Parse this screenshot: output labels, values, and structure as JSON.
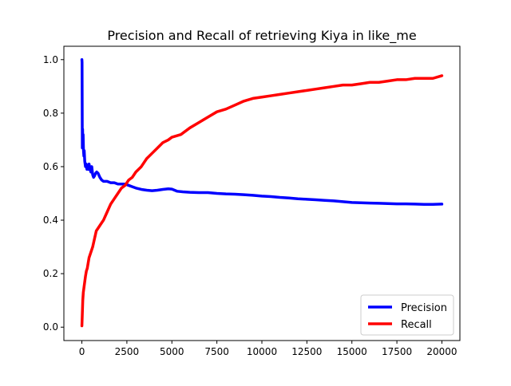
{
  "chart_data": {
    "type": "line",
    "title": "Precision and Recall of retrieving Kiya in like_me",
    "xlabel": "",
    "ylabel": "",
    "xlim": [
      -1000,
      21000
    ],
    "ylim": [
      -0.05,
      1.05
    ],
    "xticks": [
      0,
      2500,
      5000,
      7500,
      10000,
      12500,
      15000,
      17500,
      20000
    ],
    "yticks": [
      0.0,
      0.2,
      0.4,
      0.6,
      0.8,
      1.0
    ],
    "xtick_labels": [
      "0",
      "2500",
      "5000",
      "7500",
      "10000",
      "12500",
      "15000",
      "17500",
      "20000"
    ],
    "ytick_labels": [
      "0.0",
      "0.2",
      "0.4",
      "0.6",
      "0.8",
      "1.0"
    ],
    "grid": false,
    "legend": {
      "position": "lower-right"
    },
    "series": [
      {
        "name": "Precision",
        "color": "#0000ff",
        "x": [
          1,
          10,
          25,
          40,
          55,
          70,
          90,
          110,
          130,
          160,
          200,
          240,
          280,
          320,
          360,
          400,
          450,
          500,
          550,
          600,
          650,
          700,
          760,
          820,
          900,
          1000,
          1100,
          1200,
          1400,
          1600,
          1800,
          2000,
          2200,
          2400,
          2600,
          2800,
          3000,
          3300,
          3600,
          3900,
          4200,
          4500,
          4800,
          5000,
          5300,
          5600,
          6000,
          6500,
          7000,
          7500,
          8000,
          8500,
          9000,
          9500,
          10000,
          10500,
          11000,
          11500,
          12000,
          12500,
          13000,
          13500,
          14000,
          14500,
          15000,
          15500,
          16000,
          16500,
          17000,
          17500,
          18000,
          18500,
          19000,
          19500,
          20000
        ],
        "values": [
          1.0,
          0.99,
          0.67,
          0.74,
          0.68,
          0.72,
          0.66,
          0.64,
          0.66,
          0.62,
          0.6,
          0.61,
          0.59,
          0.6,
          0.59,
          0.61,
          0.59,
          0.58,
          0.6,
          0.57,
          0.56,
          0.565,
          0.575,
          0.58,
          0.575,
          0.56,
          0.55,
          0.545,
          0.545,
          0.54,
          0.54,
          0.535,
          0.535,
          0.535,
          0.53,
          0.525,
          0.52,
          0.515,
          0.512,
          0.51,
          0.512,
          0.515,
          0.517,
          0.516,
          0.508,
          0.506,
          0.504,
          0.503,
          0.503,
          0.5,
          0.498,
          0.497,
          0.495,
          0.493,
          0.49,
          0.488,
          0.485,
          0.483,
          0.48,
          0.478,
          0.476,
          0.474,
          0.472,
          0.469,
          0.466,
          0.465,
          0.464,
          0.463,
          0.462,
          0.461,
          0.461,
          0.46,
          0.459,
          0.459,
          0.46
        ]
      },
      {
        "name": "Recall",
        "color": "#ff0000",
        "x": [
          1,
          20,
          50,
          80,
          120,
          160,
          200,
          250,
          300,
          350,
          400,
          450,
          500,
          600,
          700,
          800,
          900,
          1000,
          1200,
          1400,
          1600,
          1800,
          2000,
          2200,
          2400,
          2600,
          2800,
          3000,
          3300,
          3600,
          3900,
          4200,
          4500,
          4800,
          5000,
          5500,
          6000,
          6500,
          7000,
          7500,
          8000,
          8500,
          9000,
          9500,
          10000,
          10500,
          11000,
          11500,
          12000,
          12500,
          13000,
          13500,
          14000,
          14500,
          15000,
          15500,
          16000,
          16500,
          17000,
          17500,
          18000,
          18500,
          19000,
          19500,
          20000
        ],
        "values": [
          0.005,
          0.04,
          0.1,
          0.13,
          0.15,
          0.17,
          0.19,
          0.21,
          0.22,
          0.24,
          0.26,
          0.27,
          0.28,
          0.3,
          0.33,
          0.36,
          0.37,
          0.38,
          0.4,
          0.43,
          0.46,
          0.48,
          0.5,
          0.52,
          0.53,
          0.55,
          0.56,
          0.58,
          0.6,
          0.63,
          0.65,
          0.67,
          0.69,
          0.7,
          0.71,
          0.72,
          0.745,
          0.765,
          0.785,
          0.805,
          0.815,
          0.83,
          0.845,
          0.855,
          0.86,
          0.865,
          0.87,
          0.875,
          0.88,
          0.885,
          0.89,
          0.895,
          0.9,
          0.905,
          0.905,
          0.91,
          0.915,
          0.915,
          0.92,
          0.925,
          0.925,
          0.93,
          0.93,
          0.93,
          0.94
        ]
      }
    ]
  }
}
